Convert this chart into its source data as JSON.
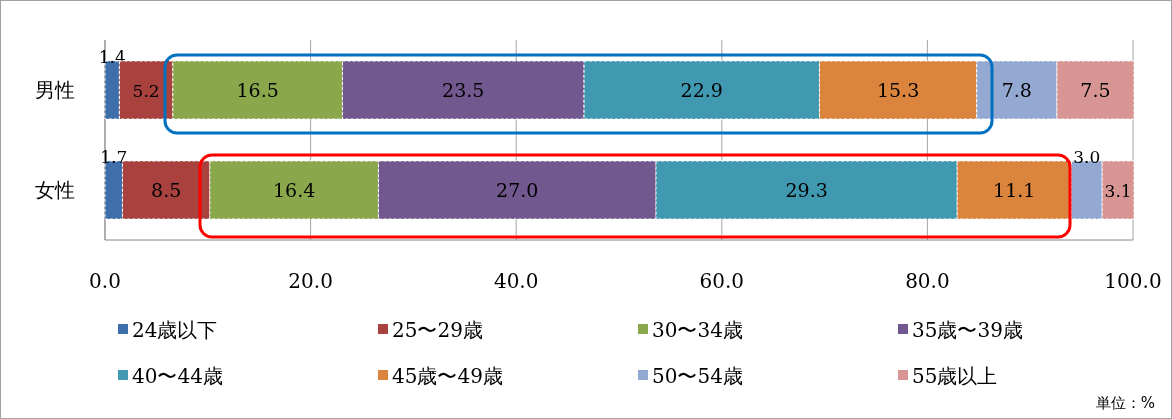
{
  "chart_data": {
    "type": "bar",
    "orientation": "horizontal",
    "stacked": true,
    "categories": [
      "男性",
      "女性"
    ],
    "series": [
      {
        "name": "24歳以下",
        "color": "#3f6faa",
        "values": [
          1.4,
          1.7
        ],
        "value_labels": [
          "1.4",
          "1.7"
        ]
      },
      {
        "name": "25〜29歳",
        "color": "#a9423f",
        "values": [
          5.2,
          8.5
        ],
        "value_labels": [
          "5.2",
          "8.5"
        ]
      },
      {
        "name": "30〜34歳",
        "color": "#8aa84b",
        "values": [
          16.5,
          16.4
        ],
        "value_labels": [
          "16.5",
          "16.4"
        ]
      },
      {
        "name": "35歳〜39歳",
        "color": "#71588f",
        "values": [
          23.5,
          27.0
        ],
        "value_labels": [
          "23.5",
          "27.0"
        ]
      },
      {
        "name": "40〜44歳",
        "color": "#4099b0",
        "values": [
          22.9,
          29.3
        ],
        "value_labels": [
          "22.9",
          "29.3"
        ]
      },
      {
        "name": "45歳〜49歳",
        "color": "#db843d",
        "values": [
          15.3,
          11.1
        ],
        "value_labels": [
          "15.3",
          "11.1"
        ]
      },
      {
        "name": "50〜54歳",
        "color": "#94a9d2",
        "values": [
          7.8,
          3.0
        ],
        "value_labels": [
          "7.8",
          "3.0"
        ]
      },
      {
        "name": "55歳以上",
        "color": "#d79594",
        "values": [
          7.5,
          3.1
        ],
        "value_labels": [
          "7.5",
          "3.1"
        ]
      }
    ],
    "xlim": [
      0,
      100
    ],
    "xticks": [
      {
        "value": 0,
        "label": "0.0"
      },
      {
        "value": 20,
        "label": "20.0"
      },
      {
        "value": 40,
        "label": "40.0"
      },
      {
        "value": 60,
        "label": "60.0"
      },
      {
        "value": 80,
        "label": "80.0"
      },
      {
        "value": 100,
        "label": "100.0"
      }
    ],
    "grid": "x",
    "legend": "bottom",
    "annotations": [
      "単位：%"
    ]
  }
}
